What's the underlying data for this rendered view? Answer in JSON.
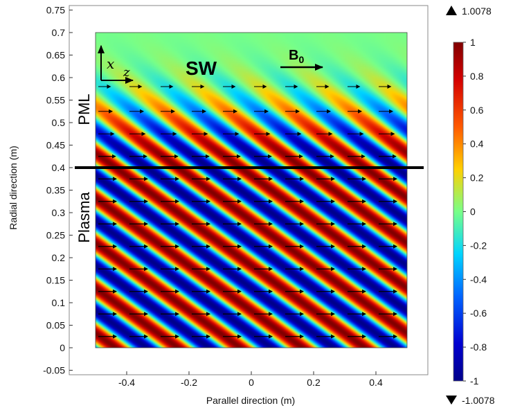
{
  "chart_data": {
    "type": "heatmap",
    "title": "",
    "xlabel": "Parallel direction (m)",
    "ylabel": "Radial direction (m)",
    "xlim": [
      -0.55,
      0.6
    ],
    "ylim": [
      -0.06,
      0.76
    ],
    "x_ticks": [
      -0.4,
      -0.2,
      0,
      0.2,
      0.4
    ],
    "y_ticks": [
      -0.05,
      0,
      0.05,
      0.1,
      0.15,
      0.2,
      0.25,
      0.3,
      0.35,
      0.4,
      0.45,
      0.5,
      0.55,
      0.6,
      0.65,
      0.7,
      0.75
    ],
    "x_tick_labels": [
      "-0.4",
      "-0.2",
      "0",
      "0.2",
      "0.4"
    ],
    "y_tick_labels": [
      "-0.05",
      "0",
      "0.05",
      "0.1",
      "0.15",
      "0.2",
      "0.25",
      "0.3",
      "0.35",
      "0.4",
      "0.45",
      "0.5",
      "0.55",
      "0.6",
      "0.65",
      "0.7",
      "0.75"
    ],
    "domain": {
      "x": [
        -0.5,
        0.5
      ],
      "y": [
        0,
        0.7
      ]
    },
    "interface_y": 0.4,
    "colormap": "rainbow",
    "colorbar": {
      "range": [
        -1,
        1
      ],
      "ticks": [
        1,
        0.8,
        0.6,
        0.4,
        0.2,
        0,
        -0.2,
        -0.4,
        -0.6,
        -0.8,
        -1
      ],
      "tick_labels": [
        "1",
        "0.8",
        "0.6",
        "0.4",
        "0.2",
        "0",
        "-0.2",
        "-0.4",
        "-0.6",
        "-0.8",
        "-1"
      ],
      "max_label": "1.0078",
      "min_label": "-1.0078"
    },
    "annotations": {
      "wave_label": "SW",
      "field_label": "B",
      "field_subscript": "0",
      "axis_x_symbol": "x",
      "axis_z_symbol": "z",
      "region_top": "PML",
      "region_bottom": "Plasma"
    }
  }
}
